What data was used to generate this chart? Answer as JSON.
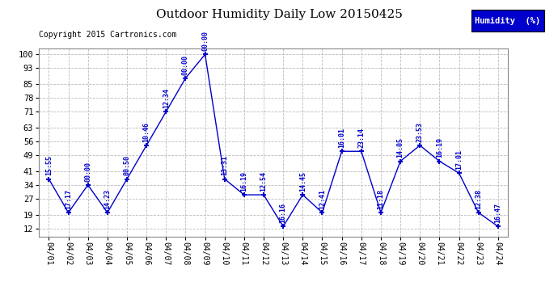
{
  "title": "Outdoor Humidity Daily Low 20150425",
  "copyright": "Copyright 2015 Cartronics.com",
  "legend_label": "Humidity  (%)",
  "x_labels": [
    "04/01",
    "04/02",
    "04/03",
    "04/04",
    "04/05",
    "04/06",
    "04/07",
    "04/08",
    "04/09",
    "04/10",
    "04/11",
    "04/12",
    "04/13",
    "04/14",
    "04/15",
    "04/16",
    "04/17",
    "04/18",
    "04/19",
    "04/20",
    "04/21",
    "04/22",
    "04/23",
    "04/24"
  ],
  "y_ticks": [
    12,
    19,
    27,
    34,
    41,
    49,
    56,
    63,
    71,
    78,
    85,
    93,
    100
  ],
  "line_color": "#0000cc",
  "bg_color": "#ffffff",
  "grid_color": "#bbbbbb",
  "title_color": "#000000",
  "label_color": "#0000cc",
  "copyright_color": "#000000",
  "legend_bg": "#0000cc",
  "legend_text_color": "#ffffff",
  "points": [
    [
      0,
      37,
      "15:55"
    ],
    [
      1,
      20,
      "17:17"
    ],
    [
      2,
      34,
      "00:00"
    ],
    [
      3,
      20,
      "14:23"
    ],
    [
      4,
      37,
      "00:50"
    ],
    [
      5,
      54,
      "10:46"
    ],
    [
      6,
      71,
      "12:34"
    ],
    [
      7,
      88,
      "00:00"
    ],
    [
      8,
      100,
      "00:00"
    ],
    [
      9,
      37,
      "13:31"
    ],
    [
      10,
      29,
      "16:19"
    ],
    [
      11,
      29,
      "12:54"
    ],
    [
      12,
      13,
      "16:16"
    ],
    [
      13,
      29,
      "14:45"
    ],
    [
      14,
      20,
      "12:41"
    ],
    [
      15,
      51,
      "16:01"
    ],
    [
      16,
      51,
      "23:14"
    ],
    [
      17,
      20,
      "11:18"
    ],
    [
      18,
      46,
      "14:05"
    ],
    [
      19,
      54,
      "23:53"
    ],
    [
      20,
      46,
      "16:19"
    ],
    [
      21,
      40,
      "17:01"
    ],
    [
      22,
      20,
      "12:38"
    ],
    [
      23,
      13,
      "16:47"
    ]
  ]
}
